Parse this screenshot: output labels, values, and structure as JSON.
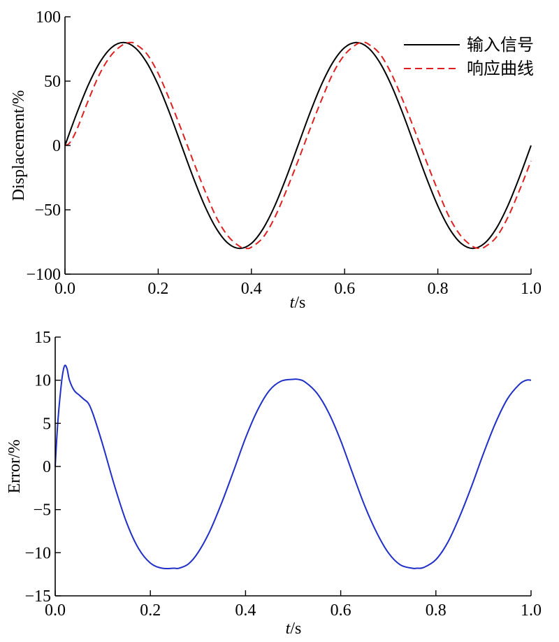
{
  "chart_data": [
    {
      "type": "line",
      "xlabel": {
        "var": "t",
        "unit": "/s"
      },
      "ylabel": "Displacement/%",
      "xlim": [
        0,
        1
      ],
      "ylim": [
        -100,
        100
      ],
      "xticks": [
        "0.0",
        "0.2",
        "0.4",
        "0.6",
        "0.8",
        "1.0"
      ],
      "yticks": [
        "100",
        "50",
        "0",
        "−50",
        "−100"
      ],
      "grid": false,
      "legend_position": "top-right",
      "series": [
        {
          "name": "输入信号",
          "color": "#000000",
          "style": "solid",
          "x": [
            0,
            0.025,
            0.05,
            0.075,
            0.1,
            0.125,
            0.15,
            0.175,
            0.2,
            0.225,
            0.25,
            0.275,
            0.3,
            0.325,
            0.35,
            0.375,
            0.4,
            0.425,
            0.45,
            0.475,
            0.5,
            0.525,
            0.55,
            0.575,
            0.6,
            0.625,
            0.65,
            0.675,
            0.7,
            0.725,
            0.75,
            0.775,
            0.8,
            0.825,
            0.85,
            0.875,
            0.9,
            0.925,
            0.95,
            0.975,
            1.0
          ],
          "y": [
            0,
            24.7,
            47.0,
            64.7,
            76.1,
            80.0,
            76.1,
            64.7,
            47.0,
            24.7,
            0,
            -24.7,
            -47.0,
            -64.7,
            -76.1,
            -80.0,
            -76.1,
            -64.7,
            -47.0,
            -24.7,
            0,
            24.7,
            47.0,
            64.7,
            76.1,
            80.0,
            76.1,
            64.7,
            47.0,
            24.7,
            0,
            -24.7,
            -47.0,
            -64.7,
            -76.1,
            -80.0,
            -76.1,
            -64.7,
            -47.0,
            -24.7,
            0
          ]
        },
        {
          "name": "响应曲线",
          "color": "#e02020",
          "style": "dashed",
          "x": [
            0,
            0.01,
            0.025,
            0.05,
            0.075,
            0.1,
            0.125,
            0.14,
            0.15,
            0.175,
            0.2,
            0.225,
            0.25,
            0.275,
            0.3,
            0.325,
            0.35,
            0.375,
            0.39,
            0.4,
            0.425,
            0.45,
            0.475,
            0.5,
            0.525,
            0.55,
            0.575,
            0.6,
            0.625,
            0.64,
            0.65,
            0.675,
            0.7,
            0.725,
            0.75,
            0.775,
            0.8,
            0.825,
            0.85,
            0.875,
            0.89,
            0.9,
            0.925,
            0.95,
            0.975,
            1.0
          ],
          "y": [
            0,
            2.0,
            12.0,
            35.0,
            56.0,
            70.5,
            78.5,
            80.0,
            79.0,
            71.5,
            56.0,
            35.0,
            12.0,
            -12.0,
            -35.0,
            -56.0,
            -70.5,
            -78.5,
            -80.0,
            -79.0,
            -71.5,
            -56.0,
            -35.0,
            -12.0,
            12.0,
            35.0,
            56.0,
            70.5,
            78.5,
            80.0,
            79.0,
            71.5,
            56.0,
            35.0,
            12.0,
            -12.0,
            -35.0,
            -56.0,
            -70.5,
            -78.5,
            -80.0,
            -79.0,
            -71.5,
            -56.0,
            -35.0,
            -12.0
          ]
        }
      ]
    },
    {
      "type": "line",
      "xlabel": {
        "var": "t",
        "unit": "/s"
      },
      "ylabel": "Error/%",
      "xlim": [
        0,
        1
      ],
      "ylim": [
        -15,
        15
      ],
      "xticks": [
        "0.0",
        "0.2",
        "0.4",
        "0.6",
        "0.8",
        "1.0"
      ],
      "yticks": [
        "15",
        "10",
        "5",
        "0",
        "−5",
        "−10",
        "−15"
      ],
      "grid": false,
      "series": [
        {
          "color": "#1f2fc8",
          "style": "solid",
          "x": [
            0,
            0.003,
            0.006,
            0.01,
            0.015,
            0.02,
            0.025,
            0.03,
            0.04,
            0.05,
            0.06,
            0.07,
            0.08,
            0.1,
            0.125,
            0.15,
            0.175,
            0.2,
            0.225,
            0.25,
            0.26,
            0.28,
            0.3,
            0.325,
            0.35,
            0.375,
            0.4,
            0.425,
            0.45,
            0.475,
            0.5,
            0.51,
            0.525,
            0.55,
            0.575,
            0.6,
            0.625,
            0.65,
            0.675,
            0.7,
            0.725,
            0.75,
            0.76,
            0.775,
            0.8,
            0.825,
            0.85,
            0.875,
            0.9,
            0.925,
            0.95,
            0.975,
            0.99,
            1.0
          ],
          "y": [
            0,
            3.0,
            5.5,
            8.0,
            10.5,
            11.7,
            11.3,
            10.0,
            8.8,
            8.3,
            7.8,
            7.3,
            6.0,
            2.5,
            -2.3,
            -6.5,
            -9.5,
            -11.2,
            -11.8,
            -11.8,
            -11.8,
            -11.3,
            -10.0,
            -7.5,
            -4.2,
            -0.5,
            3.3,
            6.5,
            8.8,
            9.9,
            10.1,
            10.1,
            9.8,
            8.5,
            6.2,
            3.0,
            -0.8,
            -4.5,
            -7.6,
            -10.0,
            -11.4,
            -11.8,
            -11.8,
            -11.7,
            -10.8,
            -8.8,
            -5.8,
            -2.3,
            1.5,
            5.0,
            7.8,
            9.5,
            10.0,
            10.0
          ]
        }
      ]
    }
  ]
}
